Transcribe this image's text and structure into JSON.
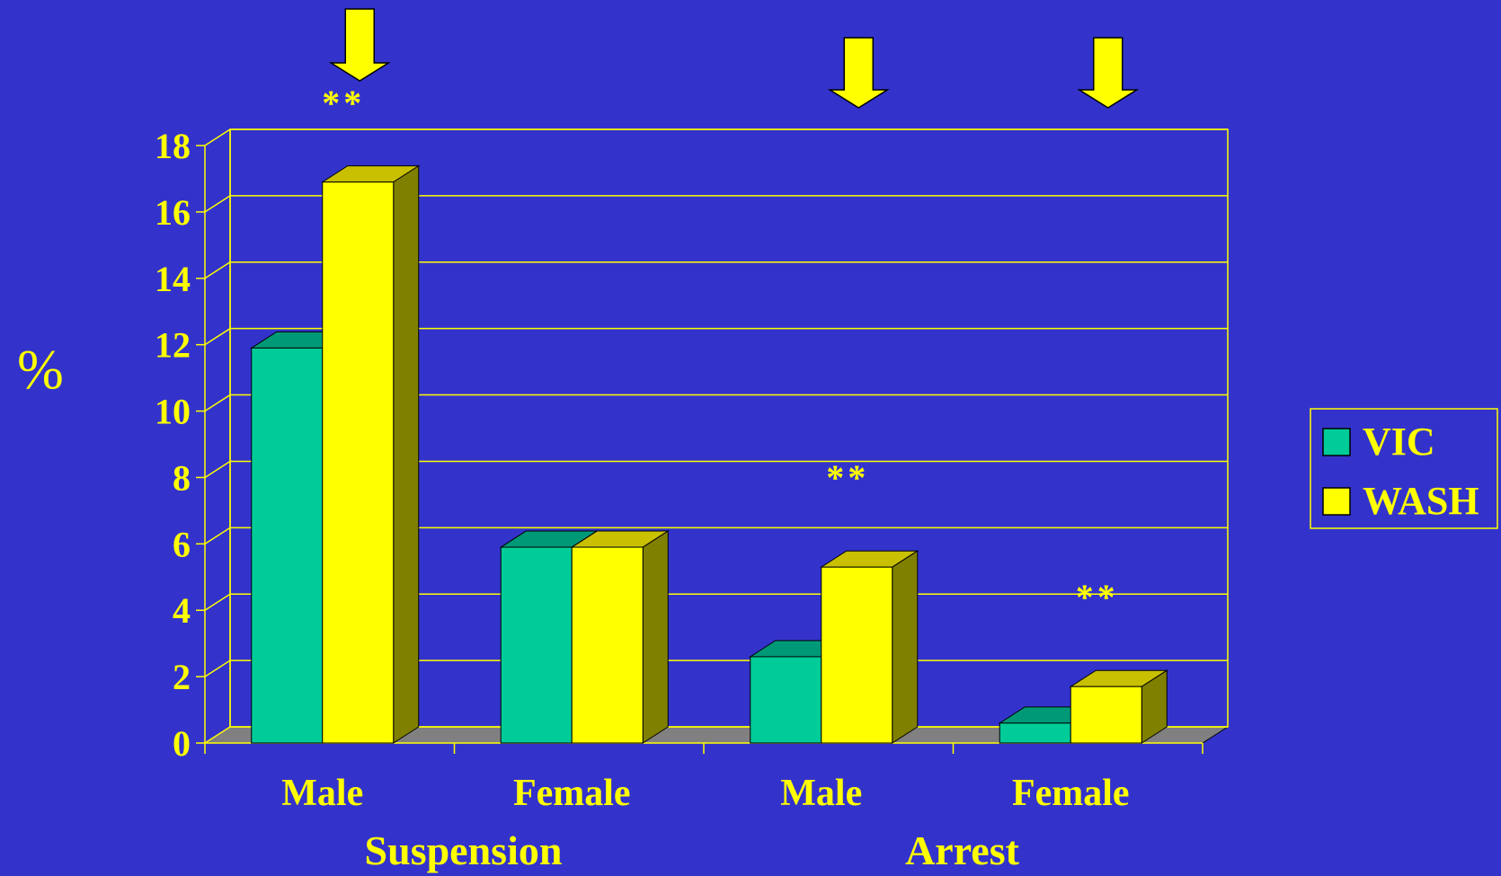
{
  "chart_data": {
    "type": "bar",
    "title": "",
    "ylabel": "%",
    "xlabel": "",
    "ylim": [
      0,
      18
    ],
    "yticks": [
      0,
      2,
      4,
      6,
      8,
      10,
      12,
      14,
      16,
      18
    ],
    "categories": [
      "Male",
      "Female",
      "Male",
      "Female"
    ],
    "groups": [
      {
        "label": "Suspension",
        "categories": [
          0,
          1
        ]
      },
      {
        "label": "Arrest",
        "categories": [
          2,
          3
        ]
      }
    ],
    "series": [
      {
        "name": "VIC",
        "values": [
          11.9,
          5.9,
          2.6,
          0.6
        ]
      },
      {
        "name": "WASH",
        "values": [
          16.9,
          5.9,
          5.3,
          1.7
        ]
      }
    ],
    "annotations": [
      {
        "category": 0,
        "text": "**",
        "arrow": true
      },
      {
        "category": 2,
        "text": "**",
        "arrow": true
      },
      {
        "category": 3,
        "text": "**",
        "arrow": true
      }
    ],
    "legend_position": "right",
    "grid": true,
    "colors": {
      "background": "#3333CC",
      "VIC": "#00CC99",
      "VIC_top": "#009977",
      "WASH": "#FFFF00",
      "WASH_top": "#C8C000",
      "WASH_side": "#808000",
      "floor": "#808080",
      "text": "#FFFF00"
    }
  }
}
